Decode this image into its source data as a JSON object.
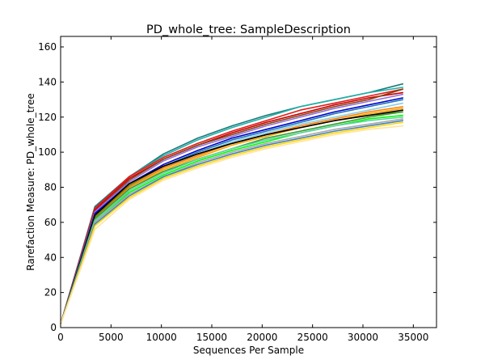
{
  "chart_data": {
    "type": "line",
    "title": "PD_whole_tree: SampleDescription",
    "xlabel": "Sequences Per Sample",
    "ylabel": "Rarefaction Measure: PD_whole_tree",
    "xlim": [
      0,
      37300
    ],
    "ylim": [
      0,
      166
    ],
    "xticks": [
      0,
      5000,
      10000,
      15000,
      20000,
      25000,
      30000,
      35000
    ],
    "xtick_labels": [
      "0",
      "5000",
      "10000",
      "15000",
      "20000",
      "25000",
      "30000",
      "35000"
    ],
    "yticks": [
      0,
      20,
      40,
      60,
      80,
      100,
      120,
      140,
      160
    ],
    "ytick_labels": [
      "0",
      "20",
      "40",
      "60",
      "80",
      "100",
      "120",
      "140",
      "160"
    ],
    "grid": false,
    "legend": "none",
    "x": [
      0,
      3400,
      6800,
      10200,
      13600,
      17000,
      20400,
      23800,
      27200,
      30600,
      34000
    ],
    "series": [
      {
        "color": "#1a7a7a",
        "values": [
          2,
          69,
          86,
          99,
          108,
          115,
          121,
          126,
          130,
          134,
          139
        ]
      },
      {
        "color": "#20b2aa",
        "values": [
          2,
          68,
          86,
          98,
          107,
          114,
          120,
          126,
          130,
          134,
          137
        ]
      },
      {
        "color": "#e31a1c",
        "values": [
          2,
          68,
          86,
          97,
          105,
          112,
          118,
          124,
          128,
          132,
          136
        ]
      },
      {
        "color": "#cc0000",
        "values": [
          2,
          67,
          85,
          96,
          104,
          111,
          117,
          122,
          127,
          131,
          134
        ]
      },
      {
        "color": "#8b4513",
        "values": [
          2,
          66,
          84,
          96,
          104,
          110,
          116,
          121,
          126,
          130,
          136
        ]
      },
      {
        "color": "#9370db",
        "values": [
          2,
          66,
          83,
          95,
          103,
          109,
          115,
          120,
          125,
          129,
          133
        ]
      },
      {
        "color": "#0000cd",
        "values": [
          2,
          65,
          82,
          93,
          101,
          108,
          113,
          118,
          123,
          127,
          131
        ]
      },
      {
        "color": "#1f78b4",
        "values": [
          2,
          64,
          81,
          92,
          100,
          107,
          112,
          117,
          122,
          126,
          130
        ]
      },
      {
        "color": "#87ceeb",
        "values": [
          2,
          64,
          80,
          91,
          99,
          106,
          111,
          116,
          120,
          124,
          128
        ]
      },
      {
        "color": "#ff7f00",
        "values": [
          2,
          63,
          80,
          91,
          98,
          105,
          110,
          115,
          119,
          123,
          126
        ]
      },
      {
        "color": "#ffa500",
        "values": [
          2,
          62,
          79,
          90,
          97,
          104,
          109,
          114,
          118,
          122,
          125
        ]
      },
      {
        "color": "#808000",
        "values": [
          2,
          63,
          81,
          92,
          99,
          105,
          110,
          114,
          118,
          121,
          123
        ]
      },
      {
        "color": "#000000",
        "values": [
          2,
          64,
          82,
          92,
          99,
          105,
          110,
          114,
          118,
          121,
          124
        ]
      },
      {
        "color": "#33a02c",
        "values": [
          2,
          62,
          79,
          89,
          96,
          102,
          108,
          112,
          116,
          120,
          123
        ]
      },
      {
        "color": "#00ff00",
        "values": [
          2,
          60,
          77,
          87,
          95,
          101,
          106,
          111,
          115,
          119,
          121
        ]
      },
      {
        "color": "#66cdaa",
        "values": [
          2,
          61,
          78,
          88,
          96,
          102,
          107,
          111,
          115,
          118,
          120
        ]
      },
      {
        "color": "#a9a9a9",
        "values": [
          2,
          60,
          76,
          86,
          94,
          100,
          105,
          109,
          113,
          116,
          119
        ]
      },
      {
        "color": "#4682b4",
        "values": [
          2,
          59,
          75,
          86,
          93,
          99,
          104,
          108,
          112,
          115,
          118
        ]
      },
      {
        "color": "#ffd700",
        "values": [
          2,
          58,
          74,
          85,
          92,
          98,
          103,
          107,
          111,
          114,
          117
        ]
      },
      {
        "color": "#ffe4a1",
        "values": [
          2,
          56,
          73,
          84,
          91,
          97,
          102,
          106,
          110,
          113,
          115
        ]
      }
    ]
  }
}
